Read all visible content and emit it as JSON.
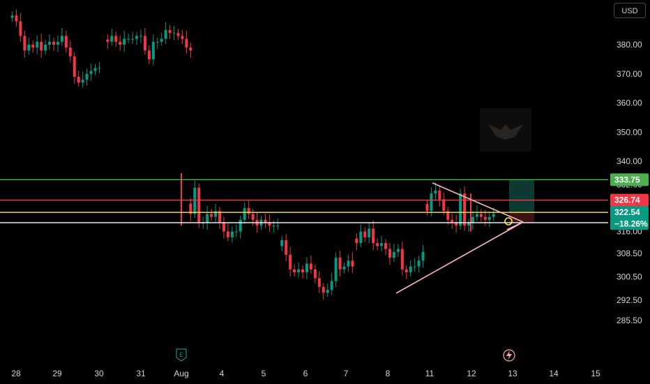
{
  "currency_button": "USD",
  "chart_data": {
    "type": "candlestick",
    "price_ticks": [
      "380.00",
      "370.00",
      "360.00",
      "350.00",
      "340.00",
      "332.00",
      "316.00",
      "308.50",
      "300.50",
      "292.50",
      "285.50"
    ],
    "price_tick_values": [
      380.0,
      370.0,
      360.0,
      350.0,
      340.0,
      332.0,
      316.0,
      308.5,
      300.5,
      292.5,
      285.5
    ],
    "date_ticks": [
      "28",
      "29",
      "30",
      "31",
      "Aug",
      "4",
      "5",
      "6",
      "7",
      "8",
      "11",
      "12",
      "13",
      "14",
      "15"
    ],
    "earnings_marker": "E",
    "colors": {
      "up": "#089981",
      "down": "#f23645",
      "green_line": "#4caf50",
      "red_line": "#f23645",
      "yellow_line": "#ffeb3b",
      "white_line": "#ffffff",
      "triangle": "#f7b6c2",
      "long_target": "#0c3a33",
      "long_stop": "#3b1216"
    },
    "levels": [
      {
        "name": "resistance",
        "value": 333.75,
        "label": "333.75",
        "color": "#4caf50"
      },
      {
        "name": "red-level",
        "value": 326.74,
        "label": "326.74",
        "color": "#f23645"
      },
      {
        "name": "last-price",
        "value": 322.54,
        "label": "322.54",
        "color": "#ffeb3b"
      },
      {
        "name": "support",
        "value": 319.0,
        "label": "",
        "color": "#ffffff"
      }
    ],
    "change_badge": "−18.26%",
    "last_price_badge": "322.54",
    "segments": [
      {
        "start": 0,
        "prices": [
          390,
          388,
          383,
          378,
          380,
          379,
          381,
          378,
          380,
          381,
          380,
          381,
          383,
          379,
          376,
          369,
          367,
          368,
          370,
          371,
          372,
          372
        ]
      },
      {
        "start": 23,
        "prices": [
          381,
          383,
          381,
          380,
          382,
          382,
          382,
          383,
          383,
          378,
          375,
          381,
          381,
          382,
          385,
          384,
          384,
          383,
          382,
          379,
          378
        ]
      },
      {
        "start": 43,
        "prices": [
          322,
          331,
          319,
          319,
          322,
          321,
          323,
          319,
          316,
          314,
          316,
          316,
          320,
          324,
          322,
          320,
          318,
          320,
          319,
          318,
          318,
          318
        ]
      },
      {
        "start": 65,
        "prices": [
          313,
          308,
          303,
          302,
          303,
          302,
          305,
          303,
          300,
          297,
          295,
          296,
          299,
          307,
          303,
          304,
          306,
          304
        ]
      },
      {
        "start": 83,
        "prices": [
          312,
          316,
          314,
          317,
          312,
          311,
          312,
          310,
          307,
          309,
          310,
          303,
          302,
          304,
          304,
          306,
          309
        ]
      },
      {
        "start": 100,
        "prices": [
          323,
          329,
          330,
          327,
          323,
          320,
          319,
          318,
          329,
          318,
          319,
          321,
          322,
          321,
          320,
          321,
          322
        ]
      }
    ]
  }
}
